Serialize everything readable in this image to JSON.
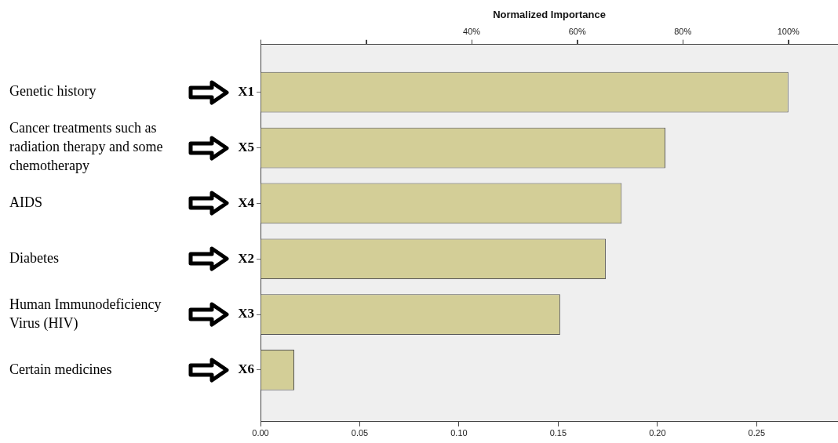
{
  "chart_data": {
    "type": "bar",
    "orientation": "horizontal",
    "x2label": "Normalized Importance",
    "categories": [
      "X1",
      "X5",
      "X4",
      "X2",
      "X3",
      "X6"
    ],
    "values": [
      0.266,
      0.204,
      0.182,
      0.174,
      0.151,
      0.017
    ],
    "color": "#d3ce97",
    "xlim": [
      0,
      0.291
    ],
    "xticks": [
      {
        "value": 0,
        "label": "0.00"
      },
      {
        "value": 0.05,
        "label": "0.05"
      },
      {
        "value": 0.1,
        "label": "0.10"
      },
      {
        "value": 0.15,
        "label": "0.15"
      },
      {
        "value": 0.2,
        "label": "0.20"
      },
      {
        "value": 0.25,
        "label": "0.25"
      }
    ],
    "x2lim": [
      0,
      109.4
    ],
    "x2ticks": [
      {
        "value": 0,
        "label": null
      },
      {
        "value": 20,
        "label": null
      },
      {
        "value": 40,
        "label": "40%"
      },
      {
        "value": 60,
        "label": "60%"
      },
      {
        "value": 80,
        "label": "80%"
      },
      {
        "value": 100,
        "label": "100%"
      }
    ],
    "grid": false,
    "legend": false,
    "annotations": [
      "Genetic history",
      "Cancer treatments such as radiation therapy and some chemotherapy",
      "AIDS",
      "Diabetes",
      "Human Immunodeficiency Virus (HIV)",
      "Certain medicines"
    ]
  }
}
